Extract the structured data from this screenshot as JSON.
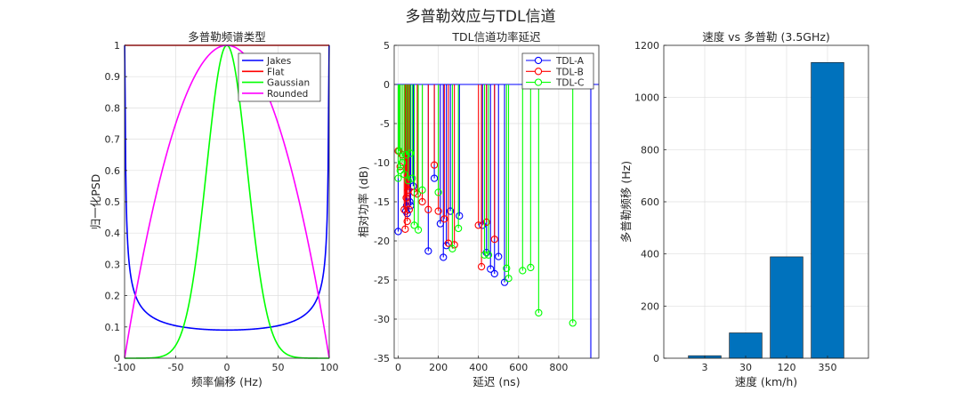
{
  "figure": {
    "suptitle": "多普勒效应与TDL信道"
  },
  "chart_data": [
    {
      "type": "line",
      "title": "多普勒频谱类型",
      "xlabel": "频率偏移 (Hz)",
      "ylabel": "归一化PSD",
      "xlim": [
        -100,
        100
      ],
      "ylim": [
        0,
        1
      ],
      "xticks": [
        -100,
        -50,
        0,
        50,
        100
      ],
      "yticks": [
        0,
        0.1,
        0.2,
        0.3,
        0.4,
        0.5,
        0.6,
        0.7,
        0.8,
        0.9,
        1
      ],
      "xtick_labels": [
        "-100",
        "-50",
        "0",
        "50",
        "100"
      ],
      "ytick_labels": [
        "0",
        "0.1",
        "0.2",
        "0.3",
        "0.4",
        "0.5",
        "0.6",
        "0.7",
        "0.8",
        "0.9",
        "1"
      ],
      "grid": true,
      "legend_position": "top-right",
      "series": [
        {
          "name": "Jakes",
          "color": "#0000ff",
          "formula": "0.09/sqrt(1-(f/100)^2), clipped at 1"
        },
        {
          "name": "Flat",
          "color": "#ff0000",
          "formula": "1"
        },
        {
          "name": "Gaussian",
          "color": "#00ff00",
          "formula": "exp(-(f/42.5)^2*2.3)"
        },
        {
          "name": "Rounded",
          "color": "#ff00ff",
          "formula": "1-(f/100)^2"
        }
      ]
    },
    {
      "type": "stem",
      "title": "TDL信道功率延迟",
      "xlabel": "延迟 (ns)",
      "ylabel": "相对功率 (dB)",
      "xlim": [
        -20,
        1000
      ],
      "ylim": [
        -35,
        5
      ],
      "xticks": [
        0,
        200,
        400,
        600,
        800
      ],
      "yticks": [
        5,
        0,
        -5,
        -10,
        -15,
        -20,
        -25,
        -30,
        -35
      ],
      "xtick_labels": [
        "0",
        "200",
        "400",
        "600",
        "800"
      ],
      "ytick_labels": [
        "5",
        "0",
        "-5",
        "-10",
        "-15",
        "-20",
        "-25",
        "-30",
        "-35"
      ],
      "baseline": 0,
      "grid": true,
      "legend_position": "top-right",
      "series": [
        {
          "name": "TDL-A",
          "color": "#0000ff",
          "x": [
            0,
            38,
            42,
            45,
            58,
            62,
            75,
            150,
            180,
            210,
            225,
            240,
            260,
            305,
            420,
            440,
            460,
            480,
            500,
            530,
            960
          ],
          "y": [
            -18.8,
            -16.2,
            -15.5,
            -16.5,
            -15.0,
            -15.5,
            -13.0,
            -21.3,
            -12.0,
            -17.8,
            -22.1,
            -20.6,
            -16.2,
            -16.8,
            -18.0,
            -21.5,
            -23.6,
            -24.2,
            -22.0,
            -25.3,
            -35.0
          ]
        },
        {
          "name": "TDL-B",
          "color": "#ff0000",
          "x": [
            0,
            10,
            20,
            30,
            35,
            40,
            45,
            50,
            55,
            80,
            95,
            120,
            150,
            180,
            200,
            230,
            250,
            280,
            400,
            415,
            440,
            480
          ],
          "y": [
            -8.5,
            -10.5,
            -9.0,
            -16.0,
            -18.5,
            -14.5,
            -17.5,
            -13.5,
            -16.0,
            -13.8,
            -14.0,
            -15.0,
            -16.0,
            -10.3,
            -16.2,
            -17.2,
            -20.3,
            -20.5,
            -18.0,
            -23.3,
            -17.6,
            -19.8
          ]
        },
        {
          "name": "TDL-C",
          "color": "#00ff00",
          "x": [
            0,
            5,
            10,
            20,
            30,
            40,
            50,
            60,
            70,
            80,
            100,
            120,
            200,
            270,
            300,
            430,
            450,
            540,
            550,
            620,
            660,
            700,
            870
          ],
          "y": [
            -12.0,
            -8.5,
            -11.0,
            -10.0,
            -11.5,
            -9.0,
            -12.3,
            -8.8,
            -12.0,
            -18.0,
            -18.6,
            -13.5,
            -13.8,
            -21.0,
            -18.4,
            -21.8,
            -21.8,
            -23.5,
            -24.8,
            -23.8,
            -23.4,
            -29.2,
            -30.5
          ]
        }
      ]
    },
    {
      "type": "bar",
      "title": "速度 vs 多普勒 (3.5GHz)",
      "xlabel": "速度 (km/h)",
      "ylabel": "多普勒频移 (Hz)",
      "categories": [
        "3",
        "30",
        "120",
        "350"
      ],
      "values": [
        9.7,
        97.2,
        388.9,
        1134.3
      ],
      "ylim": [
        0,
        1200
      ],
      "yticks": [
        0,
        200,
        400,
        600,
        800,
        1000,
        1200
      ],
      "ytick_labels": [
        "0",
        "200",
        "400",
        "600",
        "800",
        "1000",
        "1200"
      ],
      "bar_color": "#0072bd",
      "grid": true
    }
  ]
}
